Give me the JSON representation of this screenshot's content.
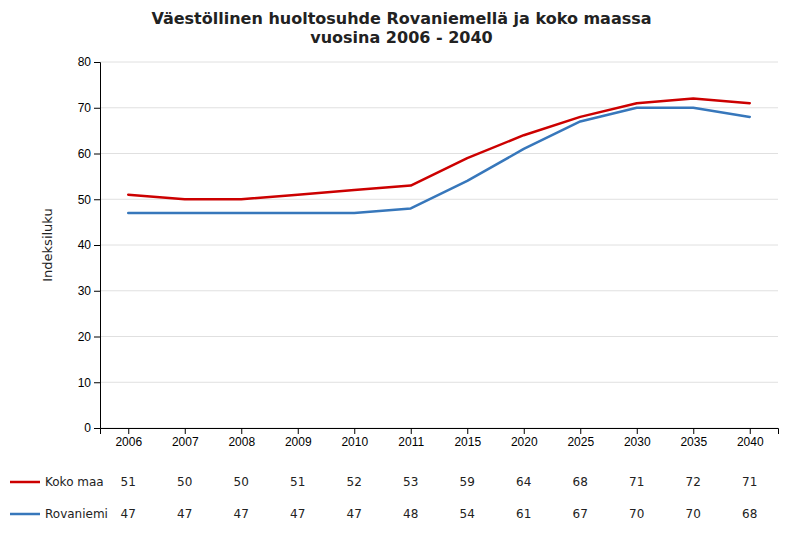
{
  "chart_data": {
    "type": "line",
    "title": "Väestöllinen huoltosuhde Rovaniemellä ja koko maassa\nvuosina 2006 - 2040",
    "y_label": "Indeksiluku",
    "categories": [
      "2006",
      "2007",
      "2008",
      "2009",
      "2010",
      "2011",
      "2015",
      "2020",
      "2025",
      "2030",
      "2035",
      "2040"
    ],
    "series": [
      {
        "name": "Koko maa",
        "color": "#cc0000",
        "values": [
          51,
          50,
          50,
          51,
          52,
          53,
          59,
          64,
          68,
          71,
          72,
          71
        ]
      },
      {
        "name": "Rovaniemi",
        "color": "#3777bb",
        "values": [
          47,
          47,
          47,
          47,
          47,
          48,
          54,
          61,
          67,
          70,
          70,
          68
        ]
      }
    ],
    "ylim": [
      0,
      80
    ],
    "yticks": [
      0,
      10,
      20,
      30,
      40,
      50,
      60,
      70,
      80
    ],
    "grid": true,
    "legend": "bottom",
    "data_labels": true
  }
}
